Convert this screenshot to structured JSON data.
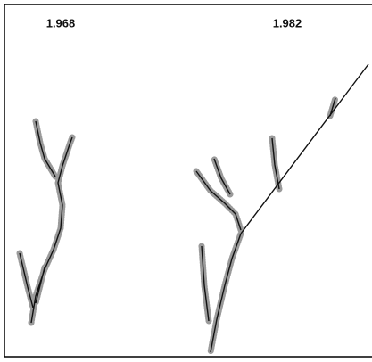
{
  "panels": [
    {
      "label": "1.968"
    },
    {
      "label": "1.982"
    }
  ]
}
